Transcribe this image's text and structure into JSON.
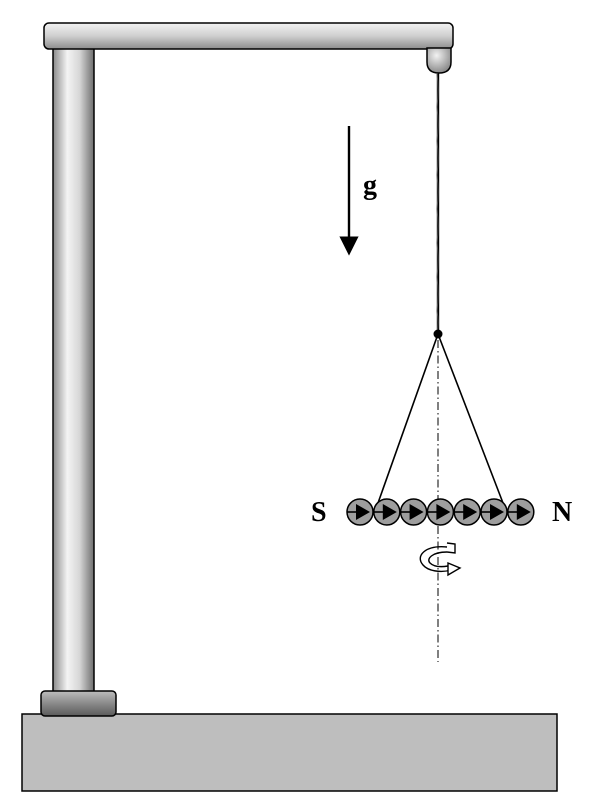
{
  "labels": {
    "gravity": "g",
    "south_pole": "S",
    "north_pole": "N"
  },
  "magnet_chain": {
    "sphere_count": 7,
    "arrow_direction": "south-to-north"
  },
  "colors": {
    "base_fill": "#bebebe",
    "sphere_fill": "#9e9e9e",
    "outline": "#000000"
  }
}
